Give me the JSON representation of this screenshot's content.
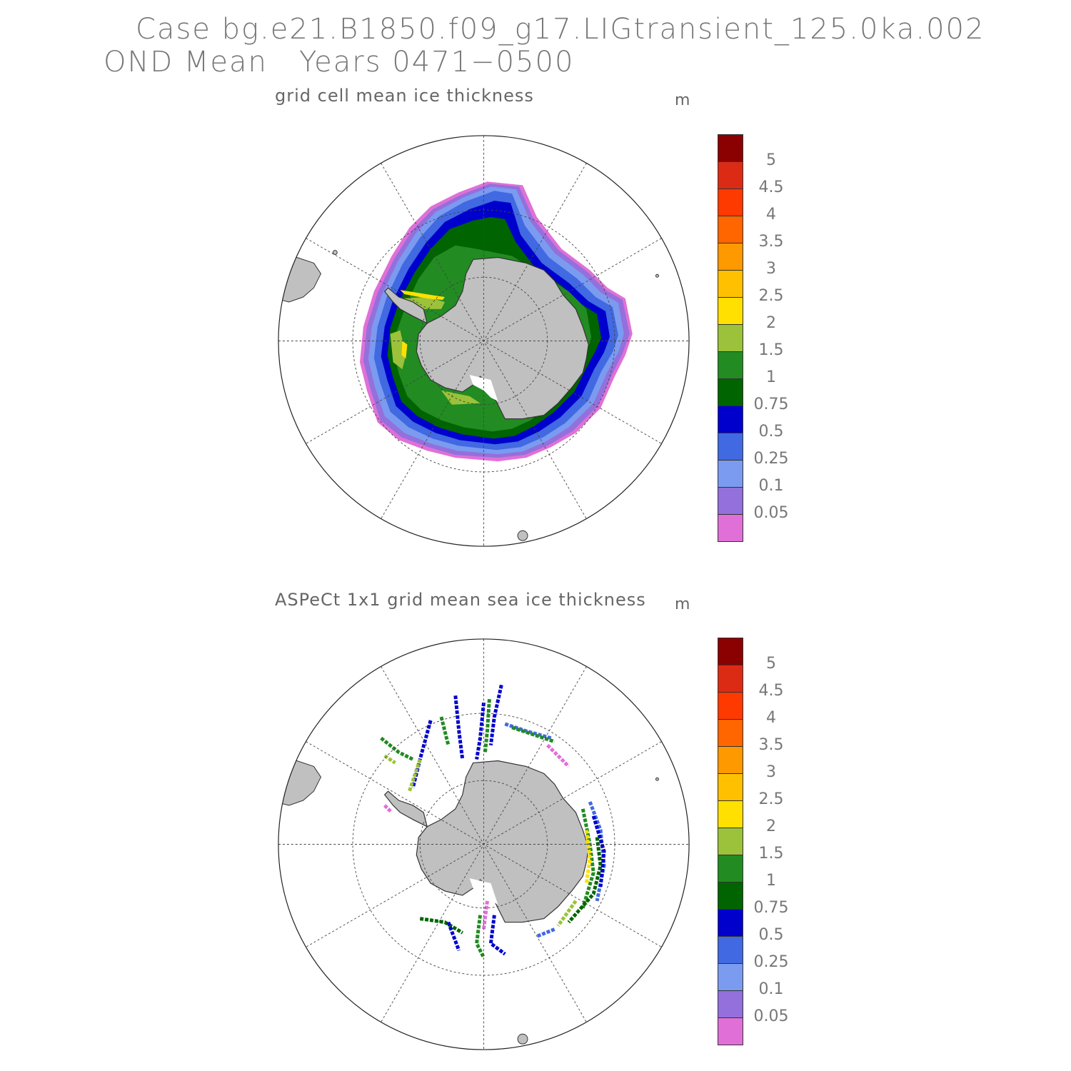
{
  "header": {
    "case_title": "Case bg.e21.B1850.f09_g17.LIGtransient_125.0ka.002",
    "period_title": "OND Mean   Years 0471−0500"
  },
  "panels": [
    {
      "title": "grid cell mean ice thickness",
      "units": "m",
      "kind": "model"
    },
    {
      "title": "ASPeCt 1x1 grid mean sea ice thickness",
      "units": "m",
      "kind": "observations"
    }
  ],
  "colorbar": {
    "labels": [
      "5",
      "4.5",
      "4",
      "3.5",
      "3",
      "2.5",
      "2",
      "1.5",
      "1",
      "0.75",
      "0.5",
      "0.25",
      "0.1",
      "0.05"
    ],
    "colors": [
      "#8b0000",
      "#dc2b14",
      "#ff3a00",
      "#ff6600",
      "#ff9900",
      "#ffc000",
      "#ffe000",
      "#9bc23a",
      "#228b22",
      "#006400",
      "#0000cd",
      "#4169e1",
      "#7a9bf0",
      "#9370db",
      "#e070d8"
    ]
  },
  "map": {
    "projection": "south-polar-stereographic",
    "land_color": "#c0c0c0",
    "grid": "dashed lat/lon"
  }
}
